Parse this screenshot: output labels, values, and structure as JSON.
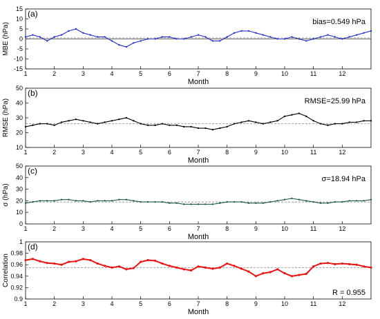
{
  "chart_data": [
    {
      "type": "line",
      "panel_label": "(a)",
      "xlabel": "Month",
      "ylabel": "MBE (hPa)",
      "xlim": [
        1,
        13
      ],
      "ylim": [
        -15,
        15
      ],
      "yticks": [
        -15,
        -10,
        -5,
        0,
        5,
        10,
        15
      ],
      "xticks": [
        1,
        2,
        3,
        4,
        5,
        6,
        7,
        8,
        9,
        10,
        11,
        12
      ],
      "annotation": "bias=0.549 hPa",
      "reference_value": 0.549,
      "series_color": "#1f2fd0",
      "x": [
        1.0,
        1.25,
        1.5,
        1.75,
        2.0,
        2.25,
        2.5,
        2.75,
        3.0,
        3.25,
        3.5,
        3.75,
        4.0,
        4.25,
        4.5,
        4.75,
        5.0,
        5.25,
        5.5,
        5.75,
        6.0,
        6.25,
        6.5,
        6.75,
        7.0,
        7.25,
        7.5,
        7.75,
        8.0,
        8.25,
        8.5,
        8.75,
        9.0,
        9.25,
        9.5,
        9.75,
        10.0,
        10.25,
        10.5,
        10.75,
        11.0,
        11.25,
        11.5,
        11.75,
        12.0,
        12.25,
        12.5,
        12.75,
        13.0
      ],
      "y": [
        1,
        2,
        1,
        -1,
        1,
        2,
        4,
        5,
        3,
        2,
        1,
        1,
        -1,
        -3,
        -4,
        -2,
        -1,
        0,
        0,
        1,
        1,
        0,
        0,
        1,
        2,
        1,
        -1,
        -1,
        1,
        3,
        4,
        4,
        3,
        2,
        1,
        0,
        0,
        1,
        0,
        -1,
        0,
        1,
        2,
        1,
        0,
        1,
        2,
        3,
        4
      ]
    },
    {
      "type": "line",
      "panel_label": "(b)",
      "xlabel": "Month",
      "ylabel": "RMSE (hPa)",
      "xlim": [
        1,
        13
      ],
      "ylim": [
        10,
        50
      ],
      "yticks": [
        10,
        20,
        30,
        40,
        50
      ],
      "xticks": [
        1,
        2,
        3,
        4,
        5,
        6,
        7,
        8,
        9,
        10,
        11,
        12
      ],
      "annotation": "RMSE=25.99 hPa",
      "reference_value": 25.99,
      "series_color": "#000000",
      "x": [
        1.0,
        1.25,
        1.5,
        1.75,
        2.0,
        2.25,
        2.5,
        2.75,
        3.0,
        3.25,
        3.5,
        3.75,
        4.0,
        4.25,
        4.5,
        4.75,
        5.0,
        5.25,
        5.5,
        5.75,
        6.0,
        6.25,
        6.5,
        6.75,
        7.0,
        7.25,
        7.5,
        7.75,
        8.0,
        8.25,
        8.5,
        8.75,
        9.0,
        9.25,
        9.5,
        9.75,
        10.0,
        10.25,
        10.5,
        10.75,
        11.0,
        11.25,
        11.5,
        11.75,
        12.0,
        12.25,
        12.5,
        12.75,
        13.0
      ],
      "y": [
        24,
        25,
        26,
        26,
        25,
        27,
        28,
        29,
        28,
        27,
        26,
        27,
        28,
        29,
        30,
        28,
        26,
        25,
        25,
        26,
        25,
        25,
        24,
        24,
        23,
        23,
        22,
        23,
        24,
        26,
        27,
        28,
        27,
        26,
        27,
        28,
        31,
        32,
        33,
        31,
        28,
        26,
        25,
        26,
        26,
        27,
        27,
        28,
        28
      ]
    },
    {
      "type": "line",
      "panel_label": "(c)",
      "xlabel": "Month",
      "ylabel": "σ (hPa)",
      "xlim": [
        1,
        13
      ],
      "ylim": [
        0,
        50
      ],
      "yticks": [
        0,
        10,
        20,
        30,
        40,
        50
      ],
      "xticks": [
        1,
        2,
        3,
        4,
        5,
        6,
        7,
        8,
        9,
        10,
        11,
        12
      ],
      "annotation": "σ=18.94 hPa",
      "reference_value": 18.94,
      "series_color": "#1d5a4a",
      "x": [
        1.0,
        1.25,
        1.5,
        1.75,
        2.0,
        2.25,
        2.5,
        2.75,
        3.0,
        3.25,
        3.5,
        3.75,
        4.0,
        4.25,
        4.5,
        4.75,
        5.0,
        5.25,
        5.5,
        5.75,
        6.0,
        6.25,
        6.5,
        6.75,
        7.0,
        7.25,
        7.5,
        7.75,
        8.0,
        8.25,
        8.5,
        8.75,
        9.0,
        9.25,
        9.5,
        9.75,
        10.0,
        10.25,
        10.5,
        10.75,
        11.0,
        11.25,
        11.5,
        11.75,
        12.0,
        12.25,
        12.5,
        12.75,
        13.0
      ],
      "y": [
        18,
        19,
        20,
        20,
        20,
        21,
        21,
        20,
        20,
        19,
        20,
        20,
        20,
        21,
        21,
        20,
        19,
        19,
        19,
        19,
        18,
        18,
        17,
        17,
        17,
        17,
        17,
        18,
        19,
        19,
        19,
        18,
        18,
        18,
        19,
        20,
        21,
        22,
        21,
        20,
        19,
        18,
        18,
        19,
        19,
        20,
        20,
        20,
        21
      ]
    },
    {
      "type": "line",
      "panel_label": "(d)",
      "xlabel": "Month",
      "ylabel": "Correlation",
      "xlim": [
        1,
        13
      ],
      "ylim": [
        0.9,
        1.0
      ],
      "yticks": [
        0.9,
        0.92,
        0.94,
        0.96,
        0.98,
        1.0
      ],
      "ytick_labels": [
        "0.9",
        "0.92",
        "0.94",
        "0.96",
        "0.98",
        "1"
      ],
      "xticks": [
        1,
        2,
        3,
        4,
        5,
        6,
        7,
        8,
        9,
        10,
        11,
        12
      ],
      "annotation": "R = 0.955",
      "reference_value": 0.955,
      "series_color": "#ee1111",
      "x": [
        1.0,
        1.25,
        1.5,
        1.75,
        2.0,
        2.25,
        2.5,
        2.75,
        3.0,
        3.25,
        3.5,
        3.75,
        4.0,
        4.25,
        4.5,
        4.75,
        5.0,
        5.25,
        5.5,
        5.75,
        6.0,
        6.25,
        6.5,
        6.75,
        7.0,
        7.25,
        7.5,
        7.75,
        8.0,
        8.25,
        8.5,
        8.75,
        9.0,
        9.25,
        9.5,
        9.75,
        10.0,
        10.25,
        10.5,
        10.75,
        11.0,
        11.25,
        11.5,
        11.75,
        12.0,
        12.25,
        12.5,
        12.75,
        13.0
      ],
      "y": [
        0.968,
        0.97,
        0.966,
        0.963,
        0.962,
        0.96,
        0.965,
        0.966,
        0.97,
        0.968,
        0.962,
        0.958,
        0.955,
        0.957,
        0.952,
        0.954,
        0.965,
        0.968,
        0.967,
        0.962,
        0.958,
        0.955,
        0.952,
        0.95,
        0.957,
        0.955,
        0.953,
        0.955,
        0.962,
        0.958,
        0.953,
        0.948,
        0.94,
        0.945,
        0.947,
        0.952,
        0.945,
        0.94,
        0.942,
        0.944,
        0.957,
        0.962,
        0.963,
        0.961,
        0.962,
        0.961,
        0.96,
        0.957,
        0.955
      ]
    }
  ]
}
